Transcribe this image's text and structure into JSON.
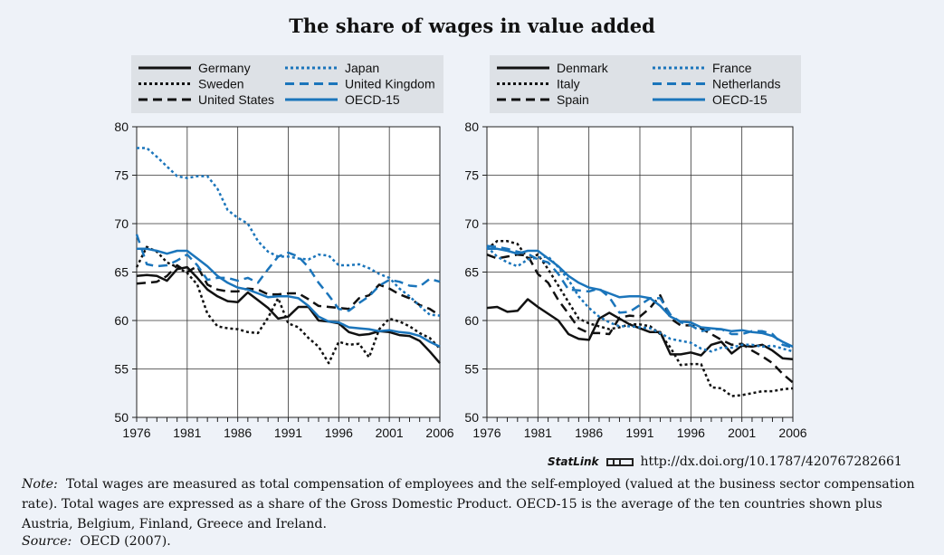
{
  "title": "The share of wages in value added",
  "chart_data": [
    {
      "type": "line",
      "ylim": [
        50,
        80
      ],
      "xlim": [
        1976,
        2006
      ],
      "yticks": [
        50,
        55,
        60,
        65,
        70,
        75,
        80
      ],
      "xticks": [
        1976,
        1981,
        1986,
        1991,
        1996,
        2001,
        2006
      ],
      "series": [
        {
          "name": "Germany",
          "color": "#111111",
          "dash": "solid",
          "x": [
            1976,
            1977,
            1978,
            1979,
            1980,
            1981,
            1982,
            1983,
            1984,
            1985,
            1986,
            1987,
            1988,
            1989,
            1990,
            1991,
            1992,
            1993,
            1994,
            1995,
            1996,
            1997,
            1998,
            1999,
            2000,
            2001,
            2002,
            2003,
            2004,
            2005,
            2006
          ],
          "y": [
            64.6,
            64.7,
            64.6,
            64.1,
            65.3,
            65.5,
            64.4,
            63.2,
            62.5,
            62.0,
            61.9,
            62.9,
            62.1,
            61.3,
            60.2,
            60.4,
            61.4,
            61.4,
            60.0,
            59.9,
            59.7,
            58.8,
            58.5,
            58.6,
            58.9,
            58.8,
            58.5,
            58.4,
            57.9,
            56.8,
            55.6
          ]
        },
        {
          "name": "Sweden",
          "color": "#111111",
          "dash": "3,3",
          "x": [
            1976,
            1977,
            1978,
            1979,
            1980,
            1981,
            1982,
            1983,
            1984,
            1985,
            1986,
            1987,
            1988,
            1989,
            1990,
            1991,
            1992,
            1993,
            1994,
            1995,
            1996,
            1997,
            1998,
            1999,
            2000,
            2001,
            2002,
            2003,
            2004,
            2005,
            2006
          ],
          "y": [
            65.5,
            67.6,
            67.1,
            66.0,
            65.5,
            64.9,
            63.7,
            60.7,
            59.4,
            59.2,
            59.1,
            58.8,
            58.7,
            60.3,
            62.3,
            59.7,
            59.3,
            58.2,
            57.3,
            55.6,
            57.8,
            57.5,
            57.6,
            56.2,
            59.1,
            60.2,
            59.9,
            59.4,
            58.7,
            58.2,
            57.1
          ]
        },
        {
          "name": "United States",
          "color": "#111111",
          "dash": "10,6",
          "x": [
            1976,
            1977,
            1978,
            1979,
            1980,
            1981,
            1982,
            1983,
            1984,
            1985,
            1986,
            1987,
            1988,
            1989,
            1990,
            1991,
            1992,
            1993,
            1994,
            1995,
            1996,
            1997,
            1998,
            1999,
            2000,
            2001,
            2002,
            2003,
            2004,
            2005,
            2006
          ],
          "y": [
            63.8,
            63.9,
            64.0,
            64.6,
            65.7,
            65.0,
            65.6,
            63.7,
            63.2,
            63.0,
            63.0,
            63.3,
            63.2,
            62.7,
            62.7,
            62.8,
            62.8,
            62.2,
            61.5,
            61.4,
            61.3,
            61.2,
            62.3,
            62.6,
            63.7,
            63.3,
            62.7,
            62.3,
            61.6,
            61.2,
            60.5
          ]
        },
        {
          "name": "Japan",
          "color": "#1b75bb",
          "dash": "3,3",
          "x": [
            1976,
            1977,
            1978,
            1979,
            1980,
            1981,
            1982,
            1983,
            1984,
            1985,
            1986,
            1987,
            1988,
            1989,
            1990,
            1991,
            1992,
            1993,
            1994,
            1995,
            1996,
            1997,
            1998,
            1999,
            2000,
            2001,
            2002,
            2003,
            2004,
            2005,
            2006
          ],
          "y": [
            77.8,
            77.8,
            76.9,
            75.9,
            74.9,
            74.7,
            74.9,
            74.9,
            73.6,
            71.4,
            70.6,
            70.0,
            68.2,
            67.1,
            66.6,
            66.6,
            66.4,
            66.3,
            66.8,
            66.7,
            65.7,
            65.7,
            65.8,
            65.4,
            64.8,
            64.4,
            63.3,
            62.5,
            61.5,
            60.6,
            60.5
          ]
        },
        {
          "name": "United Kingdom",
          "color": "#1b75bb",
          "dash": "10,6",
          "x": [
            1976,
            1977,
            1978,
            1979,
            1980,
            1981,
            1982,
            1983,
            1984,
            1985,
            1986,
            1987,
            1988,
            1989,
            1990,
            1991,
            1992,
            1993,
            1994,
            1995,
            1996,
            1997,
            1998,
            1999,
            2000,
            2001,
            2002,
            2003,
            2004,
            2005,
            2006
          ],
          "y": [
            68.9,
            65.8,
            65.6,
            65.7,
            66.2,
            66.8,
            65.7,
            64.2,
            64.4,
            64.4,
            64.1,
            64.4,
            63.9,
            65.3,
            66.6,
            67.0,
            66.6,
            65.5,
            63.9,
            62.6,
            61.2,
            61.0,
            61.8,
            62.5,
            63.6,
            64.2,
            64.0,
            63.6,
            63.5,
            64.3,
            64.0
          ]
        },
        {
          "name": "OECD-15",
          "color": "#1b75bb",
          "dash": "solid",
          "x": [
            1976,
            1977,
            1978,
            1979,
            1980,
            1981,
            1982,
            1983,
            1984,
            1985,
            1986,
            1987,
            1988,
            1989,
            1990,
            1991,
            1992,
            1993,
            1994,
            1995,
            1996,
            1997,
            1998,
            1999,
            2000,
            2001,
            2002,
            2003,
            2004,
            2005,
            2006
          ],
          "y": [
            67.4,
            67.4,
            67.2,
            66.9,
            67.2,
            67.2,
            66.4,
            65.6,
            64.6,
            63.9,
            63.4,
            63.2,
            62.8,
            62.4,
            62.5,
            62.5,
            62.3,
            61.5,
            60.4,
            59.9,
            59.8,
            59.3,
            59.2,
            59.1,
            58.9,
            59.0,
            58.8,
            58.7,
            58.4,
            57.8,
            57.3
          ]
        }
      ]
    },
    {
      "type": "line",
      "ylim": [
        50,
        80
      ],
      "xlim": [
        1976,
        2006
      ],
      "yticks": [
        50,
        55,
        60,
        65,
        70,
        75,
        80
      ],
      "xticks": [
        1976,
        1981,
        1986,
        1991,
        1996,
        2001,
        2006
      ],
      "series": [
        {
          "name": "Denmark",
          "color": "#111111",
          "dash": "solid",
          "x": [
            1976,
            1977,
            1978,
            1979,
            1980,
            1981,
            1982,
            1983,
            1984,
            1985,
            1986,
            1987,
            1988,
            1989,
            1990,
            1991,
            1992,
            1993,
            1994,
            1995,
            1996,
            1997,
            1998,
            1999,
            2000,
            2001,
            2002,
            2003,
            2004,
            2005,
            2006
          ],
          "y": [
            61.3,
            61.4,
            60.9,
            61.0,
            62.2,
            61.4,
            60.7,
            60.0,
            58.6,
            58.1,
            58.0,
            60.2,
            60.8,
            60.2,
            59.6,
            59.2,
            58.8,
            58.8,
            56.5,
            56.5,
            56.7,
            56.4,
            57.5,
            57.8,
            56.6,
            57.4,
            57.3,
            57.5,
            56.9,
            56.1,
            56.0
          ]
        },
        {
          "name": "Italy",
          "color": "#111111",
          "dash": "3,3",
          "x": [
            1976,
            1977,
            1978,
            1979,
            1980,
            1981,
            1982,
            1983,
            1984,
            1985,
            1986,
            1987,
            1988,
            1989,
            1990,
            1991,
            1992,
            1993,
            1994,
            1995,
            1996,
            1997,
            1998,
            1999,
            2000,
            2001,
            2002,
            2003,
            2004,
            2005,
            2006
          ],
          "y": [
            67.4,
            68.2,
            68.2,
            67.9,
            66.4,
            66.8,
            65.3,
            63.6,
            61.9,
            60.2,
            59.7,
            59.4,
            59.1,
            59.3,
            59.6,
            59.6,
            59.4,
            58.6,
            57.2,
            55.4,
            55.5,
            55.5,
            53.1,
            53.0,
            52.2,
            52.3,
            52.5,
            52.7,
            52.7,
            52.9,
            53.0
          ]
        },
        {
          "name": "Spain",
          "color": "#111111",
          "dash": "10,6",
          "x": [
            1976,
            1977,
            1978,
            1979,
            1980,
            1981,
            1982,
            1983,
            1984,
            1985,
            1986,
            1987,
            1988,
            1989,
            1990,
            1991,
            1992,
            1993,
            1994,
            1995,
            1996,
            1997,
            1998,
            1999,
            2000,
            2001,
            2002,
            2003,
            2004,
            2005,
            2006
          ],
          "y": [
            66.8,
            66.4,
            66.6,
            66.8,
            66.7,
            64.8,
            63.9,
            62.1,
            60.7,
            59.2,
            58.7,
            58.7,
            58.6,
            60.3,
            60.5,
            60.4,
            61.3,
            62.6,
            60.2,
            59.5,
            59.5,
            59.2,
            58.6,
            58.0,
            57.5,
            57.6,
            56.9,
            56.3,
            55.6,
            54.5,
            53.6
          ]
        },
        {
          "name": "France",
          "color": "#1b75bb",
          "dash": "3,3",
          "x": [
            1976,
            1977,
            1978,
            1979,
            1980,
            1981,
            1982,
            1983,
            1984,
            1985,
            1986,
            1987,
            1988,
            1989,
            1990,
            1991,
            1992,
            1993,
            1994,
            1995,
            1996,
            1997,
            1998,
            1999,
            2000,
            2001,
            2002,
            2003,
            2004,
            2005,
            2006
          ],
          "y": [
            67.6,
            66.6,
            66.0,
            65.6,
            66.3,
            66.5,
            66.6,
            65.5,
            64.2,
            62.5,
            61.3,
            60.4,
            59.8,
            59.4,
            59.4,
            59.3,
            59.2,
            58.7,
            58.1,
            57.9,
            57.7,
            57.1,
            56.8,
            57.2,
            57.2,
            57.5,
            57.5,
            57.3,
            57.4,
            57.1,
            56.8
          ]
        },
        {
          "name": "Netherlands",
          "color": "#1b75bb",
          "dash": "10,6",
          "x": [
            1976,
            1977,
            1978,
            1979,
            1980,
            1981,
            1982,
            1983,
            1984,
            1985,
            1986,
            1987,
            1988,
            1989,
            1990,
            1991,
            1992,
            1993,
            1994,
            1995,
            1996,
            1997,
            1998,
            1999,
            2000,
            2001,
            2002,
            2003,
            2004,
            2005,
            2006
          ],
          "y": [
            67.7,
            67.6,
            67.4,
            67.1,
            66.9,
            66.3,
            66.0,
            64.8,
            63.2,
            63.1,
            63.0,
            63.3,
            62.4,
            60.8,
            60.9,
            61.6,
            62.3,
            62.3,
            60.6,
            59.8,
            59.5,
            58.9,
            59.1,
            59.1,
            58.6,
            58.6,
            58.9,
            58.9,
            58.6,
            57.5,
            57.2
          ]
        },
        {
          "name": "OECD-15",
          "color": "#1b75bb",
          "dash": "solid",
          "x": [
            1976,
            1977,
            1978,
            1979,
            1980,
            1981,
            1982,
            1983,
            1984,
            1985,
            1986,
            1987,
            1988,
            1989,
            1990,
            1991,
            1992,
            1993,
            1994,
            1995,
            1996,
            1997,
            1998,
            1999,
            2000,
            2001,
            2002,
            2003,
            2004,
            2005,
            2006
          ],
          "y": [
            67.4,
            67.4,
            67.2,
            66.9,
            67.2,
            67.2,
            66.4,
            65.6,
            64.6,
            63.9,
            63.4,
            63.2,
            62.8,
            62.4,
            62.5,
            62.5,
            62.3,
            61.5,
            60.4,
            59.9,
            59.8,
            59.3,
            59.2,
            59.1,
            58.9,
            59.0,
            58.8,
            58.7,
            58.4,
            57.8,
            57.3
          ]
        }
      ]
    }
  ],
  "statlink": {
    "label": "StatLink",
    "url": "http://dx.doi.org/10.1787/420767282661"
  },
  "note": {
    "label": "Note:",
    "text": "Total wages are measured as total compensation of employees and the self-employed (valued at the business sector compensation rate). Total wages are expressed as a share of the Gross Domestic Product. OECD-15 is the average of the ten countries shown plus Austria, Belgium, Finland, Greece and Ireland."
  },
  "source": {
    "label": "Source:",
    "text": "OECD (2007)."
  }
}
